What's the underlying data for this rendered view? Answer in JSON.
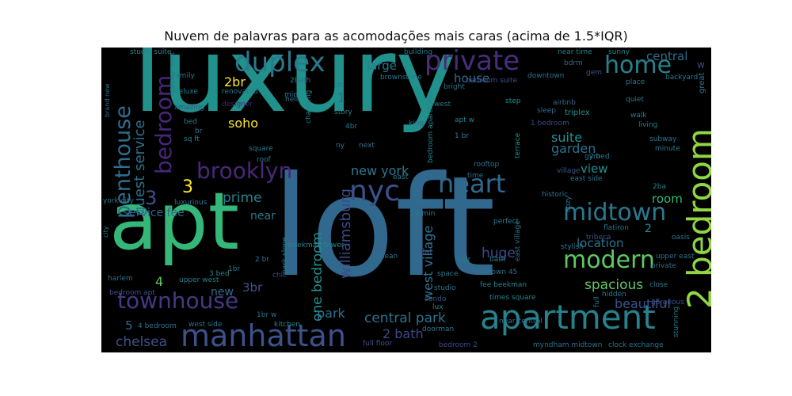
{
  "title": "Nuvem de palavras para as acomodações mais caras (acima de 1.5*IQR)",
  "words": [
    {
      "text": "luxury",
      "color": "#21918c"
    },
    {
      "text": "loft",
      "color": "#31688e"
    },
    {
      "text": "apt",
      "color": "#35b779"
    },
    {
      "text": "apartment",
      "color": "#26828e"
    },
    {
      "text": "2 bedroom",
      "color": "#90d743"
    },
    {
      "text": "manhattan",
      "color": "#3b528b"
    },
    {
      "text": "townhouse",
      "color": "#443983"
    },
    {
      "text": "private",
      "color": "#472d7b"
    },
    {
      "text": "duplex",
      "color": "#2a788e"
    },
    {
      "text": "penthouse",
      "color": "#2e6e8e"
    },
    {
      "text": "nyc",
      "color": "#3b528b"
    },
    {
      "text": "heart",
      "color": "#31688e"
    },
    {
      "text": "brooklyn",
      "color": "#482878"
    },
    {
      "text": "bedroom",
      "color": "#482677"
    },
    {
      "text": "home",
      "color": "#26828e"
    },
    {
      "text": "midtown",
      "color": "#2a788e"
    },
    {
      "text": "modern",
      "color": "#5ec962"
    },
    {
      "text": "guest service",
      "color": "#2c728e"
    },
    {
      "text": "3",
      "color": "#fde725"
    },
    {
      "text": "3",
      "color": "#3b528b"
    },
    {
      "text": "williamsburg",
      "color": "#3e4a89"
    },
    {
      "text": "west village",
      "color": "#2c728e"
    },
    {
      "text": "one bedroom",
      "color": "#21918c"
    },
    {
      "text": "central park",
      "color": "#2c728e"
    },
    {
      "text": "chelsea",
      "color": "#3b528b"
    },
    {
      "text": "2 bath",
      "color": "#3e4989"
    },
    {
      "text": "beautiful",
      "color": "#3b528b"
    },
    {
      "text": "spacious",
      "color": "#5ec962"
    },
    {
      "text": "service fee",
      "color": "#31688e"
    },
    {
      "text": "prime",
      "color": "#26828e"
    },
    {
      "text": "new york",
      "color": "#2a788e"
    },
    {
      "text": "soho",
      "color": "#fde725"
    },
    {
      "text": "2br",
      "color": "#fde725"
    },
    {
      "text": "house",
      "color": "#31688e"
    },
    {
      "text": "large",
      "color": "#2a788e"
    },
    {
      "text": "central",
      "color": "#2e6e8e"
    },
    {
      "text": "suite",
      "color": "#21918c"
    },
    {
      "text": "garden",
      "color": "#2c728e"
    },
    {
      "text": "view",
      "color": "#21918c"
    },
    {
      "text": "room",
      "color": "#35b779"
    },
    {
      "text": "location",
      "color": "#2c728e"
    },
    {
      "text": "huge",
      "color": "#3e4a89"
    },
    {
      "text": "park",
      "color": "#2c728e"
    },
    {
      "text": "near",
      "color": "#2a788e"
    },
    {
      "text": "new",
      "color": "#31688e"
    },
    {
      "text": "3br",
      "color": "#3b528b"
    },
    {
      "text": "4",
      "color": "#5ec962"
    },
    {
      "text": "5",
      "color": "#31688e"
    },
    {
      "text": "great",
      "color": "#2a788e"
    },
    {
      "text": "w",
      "color": "#3e4a89"
    },
    {
      "text": "2",
      "color": "#21918c"
    },
    {
      "text": "1",
      "color": "#31688e"
    },
    {
      "text": "studio suite",
      "color": "#26828e"
    },
    {
      "text": "building",
      "color": "#2a788e"
    },
    {
      "text": "near time",
      "color": "#26828e"
    },
    {
      "text": "sunny",
      "color": "#26828e"
    },
    {
      "text": "bdrm",
      "color": "#31688e"
    },
    {
      "text": "gem",
      "color": "#3b528b"
    },
    {
      "text": "place",
      "color": "#2a788e"
    },
    {
      "text": "backyard",
      "color": "#2a788e"
    },
    {
      "text": "family",
      "color": "#2a788e"
    },
    {
      "text": "2bath",
      "color": "#2c728e"
    },
    {
      "text": "st",
      "color": "#2a788e"
    },
    {
      "text": "brownstone",
      "color": "#2a788e"
    },
    {
      "text": "renovated",
      "color": "#2a788e"
    },
    {
      "text": "deluxe",
      "color": "#26828e"
    },
    {
      "text": "amazing",
      "color": "#3b528b"
    },
    {
      "text": "designer",
      "color": "#482878"
    },
    {
      "text": "bright",
      "color": "#2c728e"
    },
    {
      "text": "west",
      "color": "#2a788e"
    },
    {
      "text": "step",
      "color": "#21918c"
    },
    {
      "text": "triplex",
      "color": "#21918c"
    },
    {
      "text": "airbnb",
      "color": "#31688e"
    },
    {
      "text": "sleep",
      "color": "#31688e"
    },
    {
      "text": "quiet",
      "color": "#2a788e"
    },
    {
      "text": "downtown",
      "color": "#2c728e"
    },
    {
      "text": "story",
      "color": "#26828e"
    },
    {
      "text": "4br",
      "color": "#2a788e"
    },
    {
      "text": "apt w",
      "color": "#26828e"
    },
    {
      "text": "1 bedroom",
      "color": "#3e4a89"
    },
    {
      "text": "1 br",
      "color": "#26828e"
    },
    {
      "text": "king",
      "color": "#31688e"
    },
    {
      "text": "walk",
      "color": "#2a788e"
    },
    {
      "text": "living",
      "color": "#2a788e"
    },
    {
      "text": "2 bed",
      "color": "#2a788e"
    },
    {
      "text": "gym",
      "color": "#2c728e"
    },
    {
      "text": "subway",
      "color": "#2a788e"
    },
    {
      "text": "minute",
      "color": "#2a788e"
    },
    {
      "text": "rooftop",
      "color": "#2c728e"
    },
    {
      "text": "village",
      "color": "#3b528b"
    },
    {
      "text": "east side",
      "color": "#2c728e"
    },
    {
      "text": "historic",
      "color": "#2a788e"
    },
    {
      "text": "bed",
      "color": "#2a788e"
    },
    {
      "text": "br",
      "color": "#2a788e"
    },
    {
      "text": "sq ft",
      "color": "#26828e"
    },
    {
      "text": "ny",
      "color": "#2c728e"
    },
    {
      "text": "next",
      "color": "#2a788e"
    },
    {
      "text": "time",
      "color": "#2c728e"
    },
    {
      "text": "york city",
      "color": "#2c728e"
    },
    {
      "text": "luxurious",
      "color": "#2a788e"
    },
    {
      "text": "east",
      "color": "#2a788e"
    },
    {
      "text": "bed 2",
      "color": "#2c728e"
    },
    {
      "text": "flat",
      "color": "#3e4a89"
    },
    {
      "text": "perfect",
      "color": "#2a788e"
    },
    {
      "text": "flatiron",
      "color": "#2c728e"
    },
    {
      "text": "tribeca",
      "color": "#3b528b"
    },
    {
      "text": "oasis",
      "color": "#2a788e"
    },
    {
      "text": "upper east",
      "color": "#2c728e"
    },
    {
      "text": "stylish",
      "color": "#2a788e"
    },
    {
      "text": "private",
      "color": "#2c728e"
    },
    {
      "text": "clean",
      "color": "#2a788e"
    },
    {
      "text": "floor",
      "color": "#2a788e"
    },
    {
      "text": "bath",
      "color": "#2a788e"
    },
    {
      "text": "midtown 45",
      "color": "#2c728e"
    },
    {
      "text": "space",
      "color": "#2a788e"
    },
    {
      "text": "close",
      "color": "#2a788e"
    },
    {
      "text": "hidden",
      "color": "#2a788e"
    },
    {
      "text": "gorgeous",
      "color": "#3b528b"
    },
    {
      "text": "studio",
      "color": "#2c728e"
    },
    {
      "text": "fee beekman",
      "color": "#26828e"
    },
    {
      "text": "condo",
      "color": "#3b528b"
    },
    {
      "text": "lux",
      "color": "#26828e"
    },
    {
      "text": "times square",
      "color": "#26828e"
    },
    {
      "text": "full floor",
      "color": "#3b528b"
    },
    {
      "text": "bedroom 2",
      "color": "#3e4a89"
    },
    {
      "text": "myndham midtown",
      "color": "#2c728e"
    },
    {
      "text": "clock exchange",
      "color": "#2c728e"
    },
    {
      "text": "stunning",
      "color": "#2a788e"
    },
    {
      "text": "doorman",
      "color": "#2a788e"
    },
    {
      "text": "beekman tower",
      "color": "#26828e"
    },
    {
      "text": "kitchen",
      "color": "#26828e"
    },
    {
      "text": "harlem",
      "color": "#2c728e"
    },
    {
      "text": "upper west",
      "color": "#26828e"
    },
    {
      "text": "chic",
      "color": "#3e4a89"
    },
    {
      "text": "3 bed",
      "color": "#26828e"
    },
    {
      "text": "4 bedroom",
      "color": "#2c728e"
    },
    {
      "text": "west side",
      "color": "#2c728e"
    },
    {
      "text": "bedroom apt",
      "color": "#3b528b"
    },
    {
      "text": "1br",
      "color": "#2a788e"
    },
    {
      "text": "2 br",
      "color": "#2c728e"
    },
    {
      "text": "1br w",
      "color": "#2c728e"
    },
    {
      "text": "park slope",
      "color": "#2a788e"
    },
    {
      "text": "brand new",
      "color": "#2c728e"
    },
    {
      "text": "midtown west",
      "color": "#2a788e"
    },
    {
      "text": "charming",
      "color": "#26828e"
    },
    {
      "text": "city",
      "color": "#2a788e"
    },
    {
      "text": "east village",
      "color": "#2c728e"
    },
    {
      "text": "cozy",
      "color": "#2a788e"
    },
    {
      "text": "terrace",
      "color": "#21918c"
    },
    {
      "text": "2ba",
      "color": "#26828e"
    },
    {
      "text": "hell",
      "color": "#2c728e"
    },
    {
      "text": "min",
      "color": "#2a788e"
    },
    {
      "text": "roof",
      "color": "#2a788e"
    },
    {
      "text": "square",
      "color": "#2a788e"
    },
    {
      "text": "15 min",
      "color": "#26828e"
    },
    {
      "text": "near central",
      "color": "#2c728e"
    },
    {
      "text": "full",
      "color": "#2c728e"
    },
    {
      "text": "bedroom apartment",
      "color": "#26828e"
    },
    {
      "text": "bedroom suite",
      "color": "#3b528b"
    }
  ]
}
